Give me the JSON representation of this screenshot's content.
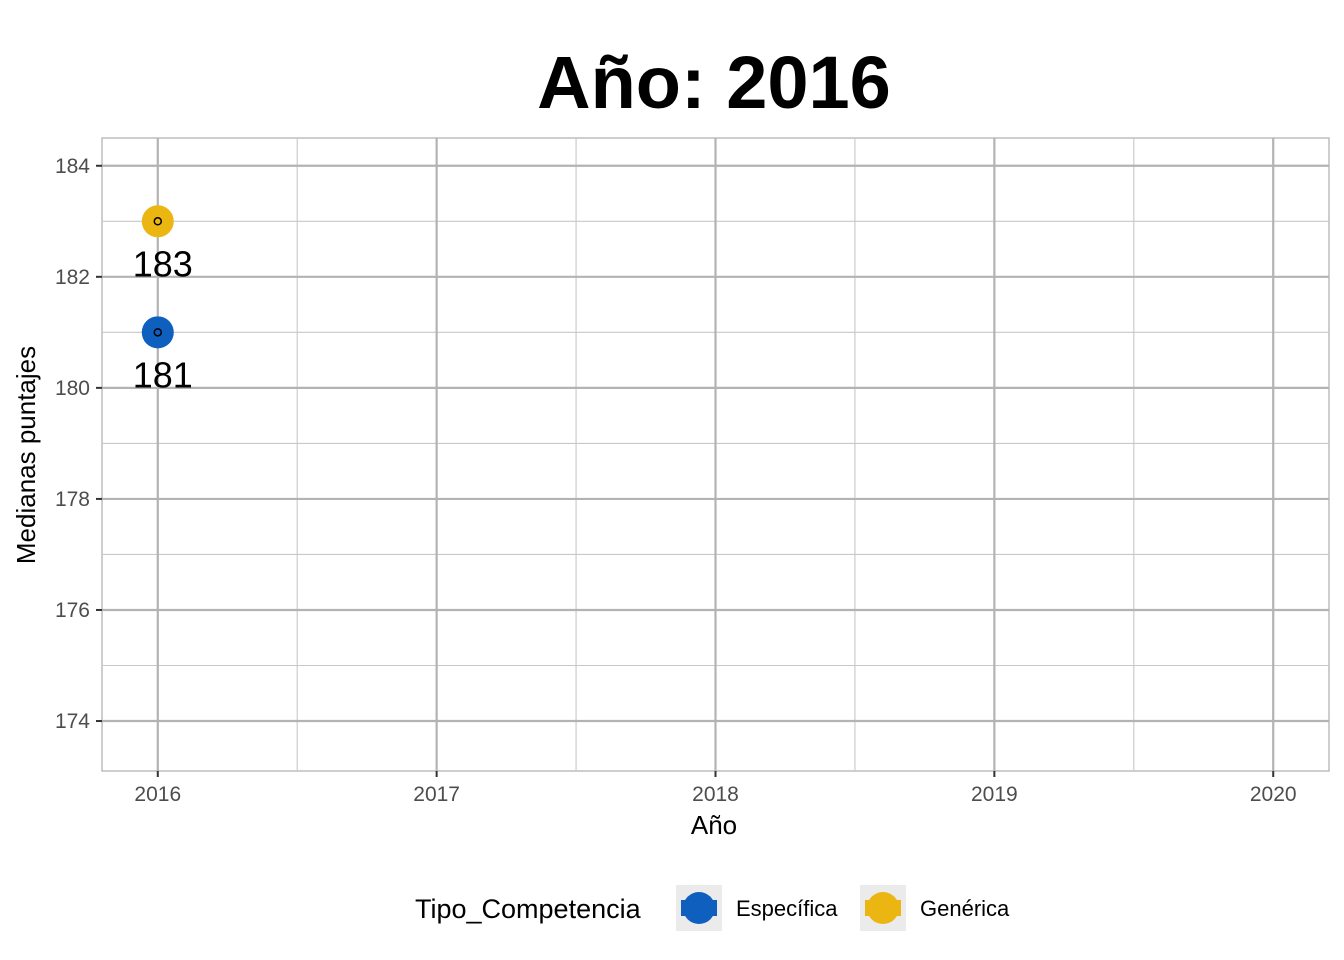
{
  "chart_data": {
    "type": "scatter",
    "title": "Año: 2016",
    "xlabel": "Año",
    "ylabel": "Medianas puntajes",
    "x_ticks": [
      "2016",
      "2017",
      "2018",
      "2019",
      "2020"
    ],
    "y_ticks": [
      "174",
      "176",
      "178",
      "180",
      "182",
      "184"
    ],
    "xlim": [
      2015.8,
      2020.2
    ],
    "ylim": [
      173.1,
      184.5
    ],
    "grid": true,
    "legend": {
      "title": "Tipo_Competencia",
      "position": "bottom"
    },
    "series": [
      {
        "name": "Específica",
        "color": "#0F5FBF",
        "points": [
          {
            "x": 2016,
            "y": 181,
            "label": "181"
          }
        ]
      },
      {
        "name": "Genérica",
        "color": "#EBB512",
        "points": [
          {
            "x": 2016,
            "y": 183,
            "label": "183"
          }
        ]
      }
    ]
  }
}
